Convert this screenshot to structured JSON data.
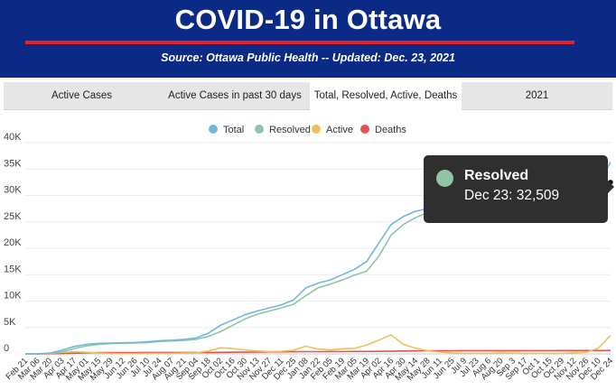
{
  "header": {
    "title": "COVID-19 in Ottawa",
    "source": "Source:  Ottawa Public Health -- Updated:  Dec. 23, 2021",
    "bg_color": "#0a2a86",
    "accent_color": "#e8202b"
  },
  "tabs": [
    {
      "label": "Active Cases"
    },
    {
      "label": "Active Cases in past 30 days"
    },
    {
      "label": "Total, Resolved, Active, Deaths"
    },
    {
      "label": "2021"
    }
  ],
  "active_tab": 2,
  "tooltip": {
    "series": "Resolved",
    "value_text": "Dec 23: 32,509",
    "color": "#90c4a2"
  },
  "chart_data": {
    "type": "line",
    "title": "",
    "xlabel": "",
    "ylabel": "",
    "ylim": [
      0,
      40000
    ],
    "y_ticks": [
      0,
      5000,
      10000,
      15000,
      20000,
      25000,
      30000,
      35000,
      40000
    ],
    "y_tick_labels": [
      "0",
      "5K",
      "10K",
      "15K",
      "20K",
      "25K",
      "30K",
      "35K",
      "40K"
    ],
    "grid": true,
    "legend": "top-center",
    "x_tick_labels": [
      "Feb 21",
      "Mar 06",
      "Mar 20",
      "Apr 03",
      "Apr 17",
      "May 01",
      "May 15",
      "May 29",
      "Jun 12",
      "Jun 26",
      "Jul 10",
      "Jul 24",
      "Aug 07",
      "Aug 21",
      "Sep 04",
      "Sep 18",
      "Oct 02",
      "Oct 16",
      "Oct 30",
      "Nov 13",
      "Nov 27",
      "Dec 11",
      "Dec 25",
      "Jan 08",
      "Jan 22",
      "Feb 05",
      "Feb 19",
      "Mar 05",
      "Mar 19",
      "Apr 02",
      "Apr 16",
      "Apr 30",
      "May 14",
      "May 28",
      "Jun 11",
      "Jun 25",
      "Jul 9",
      "Jul 23",
      "Aug 6",
      "Aug 20",
      "Sep 3",
      "Sep 17",
      "Oct 1",
      "Oct 15",
      "Oct 29",
      "Nov 12",
      "Nov 26",
      "Dec 10",
      "Dec 24"
    ],
    "x": [
      "Feb 21",
      "Mar 06",
      "Mar 20",
      "Apr 03",
      "Apr 17",
      "May 01",
      "May 15",
      "May 29",
      "Jun 12",
      "Jun 26",
      "Jul 10",
      "Jul 24",
      "Aug 07",
      "Aug 21",
      "Sep 04",
      "Sep 18",
      "Oct 02",
      "Oct 16",
      "Oct 30",
      "Nov 13",
      "Nov 27",
      "Dec 11",
      "Dec 25",
      "Jan 08",
      "Jan 22",
      "Feb 05",
      "Feb 19",
      "Mar 05",
      "Mar 19",
      "Apr 02",
      "Apr 16",
      "Apr 30",
      "May 14",
      "May 28",
      "Jun 11",
      "Jun 25",
      "Jul 9",
      "Jul 23",
      "Aug 6",
      "Aug 20",
      "Sep 3",
      "Sep 17",
      "Oct 1",
      "Oct 15",
      "Oct 29",
      "Nov 12",
      "Nov 26",
      "Dec 10",
      "Dec 24"
    ],
    "series": [
      {
        "name": "Total",
        "color": "#6fb8dd",
        "values": [
          0,
          10,
          150,
          700,
          1400,
          1800,
          2000,
          2050,
          2100,
          2150,
          2300,
          2500,
          2600,
          2750,
          3000,
          3900,
          5400,
          6400,
          7400,
          8100,
          8700,
          9300,
          10200,
          12500,
          13400,
          14000,
          15000,
          16000,
          17500,
          21000,
          24500,
          26000,
          27000,
          27500,
          27700,
          27800,
          27850,
          27950,
          28050,
          28150,
          28300,
          28500,
          28700,
          28900,
          29100,
          29400,
          29900,
          32000,
          36300
        ]
      },
      {
        "name": "Resolved",
        "color": "#90c4a2",
        "values": [
          0,
          5,
          100,
          400,
          1000,
          1500,
          1800,
          1950,
          2000,
          2050,
          2150,
          2350,
          2450,
          2550,
          2750,
          3300,
          4200,
          5400,
          6600,
          7500,
          8100,
          8700,
          9400,
          11000,
          12500,
          13200,
          14000,
          14900,
          15700,
          18500,
          22500,
          24500,
          25800,
          26800,
          27300,
          27600,
          27750,
          27850,
          27950,
          28050,
          28200,
          28400,
          28600,
          28800,
          29000,
          29200,
          29600,
          30800,
          32509
        ]
      },
      {
        "name": "Active",
        "color": "#ecc15a",
        "values": [
          0,
          5,
          50,
          300,
          400,
          300,
          150,
          80,
          50,
          50,
          100,
          100,
          100,
          150,
          200,
          550,
          1150,
          1000,
          750,
          550,
          450,
          500,
          700,
          1450,
          900,
          750,
          950,
          1050,
          1700,
          2600,
          3600,
          1800,
          1100,
          600,
          350,
          180,
          100,
          100,
          100,
          200,
          150,
          100,
          100,
          100,
          100,
          200,
          300,
          1100,
          3500
        ]
      },
      {
        "name": "Deaths",
        "color": "#e05454",
        "values": [
          0,
          0,
          10,
          60,
          120,
          200,
          240,
          255,
          260,
          262,
          265,
          268,
          270,
          272,
          275,
          280,
          285,
          300,
          320,
          345,
          380,
          400,
          410,
          420,
          430,
          440,
          450,
          460,
          470,
          480,
          500,
          540,
          570,
          590,
          600,
          605,
          608,
          610,
          612,
          614,
          616,
          618,
          620,
          622,
          624,
          626,
          628,
          630,
          633
        ]
      }
    ]
  }
}
